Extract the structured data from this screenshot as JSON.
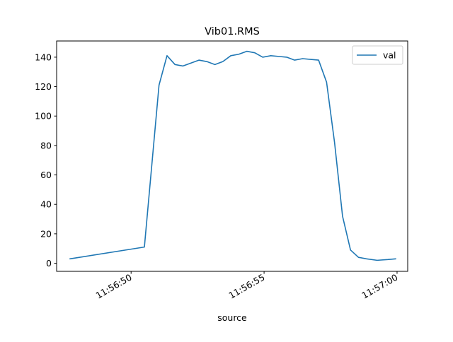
{
  "chart_data": {
    "type": "line",
    "title": "Vib01.RMS",
    "xlabel": "source",
    "ylabel": "",
    "x_type": "time",
    "xlim": [
      "11:56:47.200",
      "11:57:00.400"
    ],
    "ylim": [
      -5.5,
      151
    ],
    "x_ticks": [
      "11:56:50",
      "11:56:55",
      "11:57:00"
    ],
    "y_ticks": [
      0,
      20,
      40,
      60,
      80,
      100,
      120,
      140
    ],
    "legend": {
      "position": "top-right",
      "entries": [
        "val"
      ]
    },
    "grid": false,
    "series": [
      {
        "name": "val",
        "color": "#1f77b4",
        "x": [
          "11:56:47.700",
          "11:56:50.500",
          "11:56:51.050",
          "11:56:51.350",
          "11:56:51.650",
          "11:56:51.950",
          "11:56:52.250",
          "11:56:52.550",
          "11:56:52.850",
          "11:56:53.150",
          "11:56:53.450",
          "11:56:53.750",
          "11:56:54.050",
          "11:56:54.350",
          "11:56:54.650",
          "11:56:54.950",
          "11:56:55.250",
          "11:56:55.550",
          "11:56:55.850",
          "11:56:56.150",
          "11:56:56.450",
          "11:56:56.750",
          "11:56:57.050",
          "11:56:57.350",
          "11:56:57.650",
          "11:56:57.950",
          "11:56:58.250",
          "11:56:58.550",
          "11:56:58.850",
          "11:56:59.250",
          "11:56:59.650",
          "11:56:59.950"
        ],
        "y": [
          3,
          11,
          121,
          141,
          135,
          134,
          136,
          138,
          137,
          135,
          137,
          141,
          142,
          144,
          143,
          140,
          141,
          140.5,
          140,
          138,
          139,
          138.5,
          138,
          123,
          82,
          32,
          9,
          4,
          3,
          2,
          2.5,
          3
        ]
      }
    ]
  }
}
